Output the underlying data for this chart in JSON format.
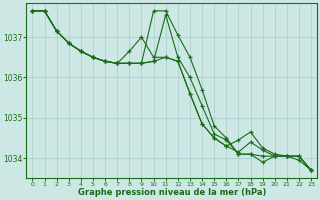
{
  "background_color": "#cde8e4",
  "plot_bg_color": "#cde8e4",
  "grid_color": "#aacccc",
  "line_color": "#1a6b1a",
  "xlabel": "Graphe pression niveau de la mer (hPa)",
  "xlim": [
    -0.5,
    23.5
  ],
  "ylim": [
    1033.5,
    1037.85
  ],
  "yticks": [
    1034,
    1035,
    1036,
    1037
  ],
  "xticks": [
    0,
    1,
    2,
    3,
    4,
    5,
    6,
    7,
    8,
    9,
    10,
    11,
    12,
    13,
    14,
    15,
    16,
    17,
    18,
    19,
    20,
    21,
    22,
    23
  ],
  "series": [
    [
      1037.65,
      1037.65,
      1037.15,
      1036.85,
      1036.65,
      1036.5,
      1036.4,
      1036.35,
      1036.35,
      1036.35,
      1036.4,
      1037.55,
      1036.5,
      1036.0,
      1035.3,
      1034.6,
      1034.45,
      1034.1,
      1034.1,
      1034.05,
      1034.05,
      1034.05,
      1034.05,
      1033.7
    ],
    [
      1037.65,
      1037.65,
      1037.15,
      1036.85,
      1036.65,
      1036.5,
      1036.4,
      1036.35,
      1036.35,
      1036.35,
      1036.4,
      1036.5,
      1036.4,
      1035.6,
      1034.85,
      1034.5,
      1034.3,
      1034.15,
      1034.4,
      1034.2,
      1034.05,
      1034.05,
      1033.95,
      1033.7
    ],
    [
      1037.65,
      1037.65,
      1037.15,
      1036.85,
      1036.65,
      1036.5,
      1036.4,
      1036.35,
      1036.65,
      1037.0,
      1036.5,
      1036.5,
      1036.4,
      1035.6,
      1034.85,
      1034.5,
      1034.3,
      1034.45,
      1034.65,
      1034.25,
      1034.1,
      1034.05,
      1034.05,
      1033.7
    ],
    [
      1037.65,
      1037.65,
      1037.15,
      1036.85,
      1036.65,
      1036.5,
      1036.4,
      1036.35,
      1036.35,
      1036.35,
      1037.65,
      1037.65,
      1037.05,
      1036.5,
      1035.7,
      1034.8,
      1034.5,
      1034.1,
      1034.1,
      1033.9,
      1034.05,
      1034.05,
      1034.05,
      1033.7
    ]
  ]
}
